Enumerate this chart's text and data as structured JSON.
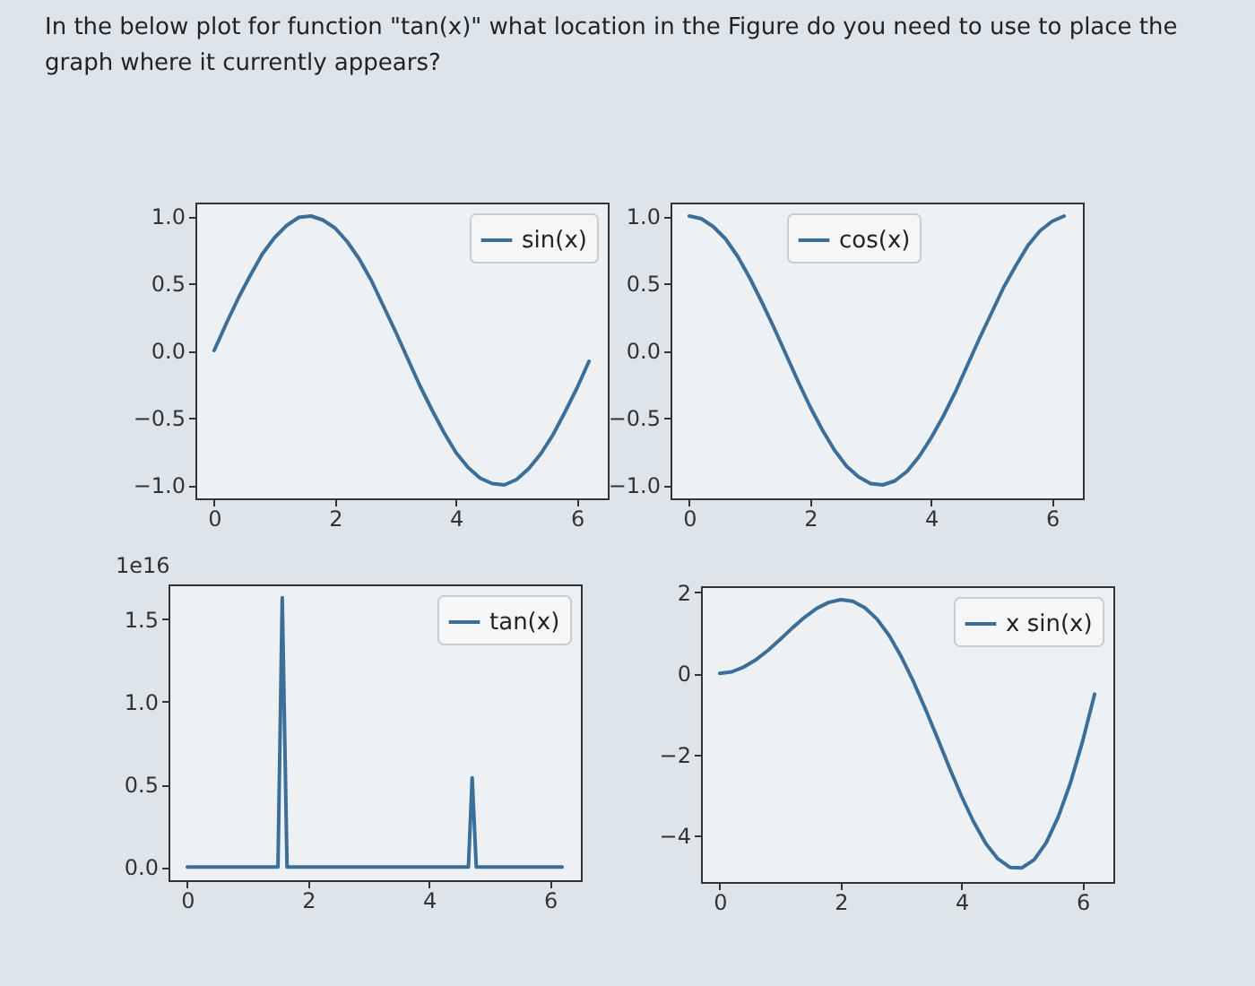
{
  "chart_data": [
    {
      "type": "line",
      "title": "In the below plot for function \"tan(x)\" what location in the Figure do you need to use to place the graph where it currently appears?",
      "x": [
        0,
        0.2,
        0.4,
        0.6,
        0.8,
        1.0,
        1.2,
        1.4,
        1.6,
        1.8,
        2.0,
        2.2,
        2.4,
        2.6,
        2.8,
        3.0,
        3.2,
        3.4,
        3.6,
        3.8,
        4.0,
        4.2,
        4.4,
        4.6,
        4.8,
        5.0,
        5.2,
        5.4,
        5.6,
        5.8,
        6.0,
        6.2
      ],
      "series": [
        {
          "name": "sin(x)",
          "color": "#3b6e99",
          "values": [
            0,
            0.2,
            0.39,
            0.56,
            0.72,
            0.84,
            0.93,
            0.99,
            1.0,
            0.97,
            0.91,
            0.81,
            0.68,
            0.52,
            0.33,
            0.14,
            -0.06,
            -0.26,
            -0.44,
            -0.61,
            -0.76,
            -0.87,
            -0.95,
            -0.99,
            -1.0,
            -0.96,
            -0.88,
            -0.77,
            -0.63,
            -0.46,
            -0.28,
            -0.08
          ]
        }
      ],
      "xlim": [
        -0.31,
        6.51
      ],
      "xticks": [
        0,
        2,
        4,
        6
      ],
      "ylim": [
        -1.1,
        1.1
      ],
      "yticks": [
        {
          "value": -1,
          "label": "−1.0"
        },
        {
          "value": -0.5,
          "label": "−0.5"
        },
        {
          "value": 0,
          "label": "0.0"
        },
        {
          "value": 0.5,
          "label": "0.5"
        },
        {
          "value": 1,
          "label": "1.0"
        }
      ],
      "legend": "top right"
    },
    {
      "type": "line",
      "x": [
        0,
        0.2,
        0.4,
        0.6,
        0.8,
        1.0,
        1.2,
        1.4,
        1.6,
        1.8,
        2.0,
        2.2,
        2.4,
        2.6,
        2.8,
        3.0,
        3.2,
        3.4,
        3.6,
        3.8,
        4.0,
        4.2,
        4.4,
        4.6,
        4.8,
        5.0,
        5.2,
        5.4,
        5.6,
        5.8,
        6.0,
        6.2
      ],
      "series": [
        {
          "name": "cos(x)",
          "color": "#3b6e99",
          "values": [
            1.0,
            0.98,
            0.92,
            0.83,
            0.7,
            0.54,
            0.36,
            0.17,
            -0.03,
            -0.23,
            -0.42,
            -0.59,
            -0.74,
            -0.86,
            -0.94,
            -0.99,
            -1.0,
            -0.97,
            -0.9,
            -0.79,
            -0.65,
            -0.49,
            -0.31,
            -0.11,
            0.09,
            0.28,
            0.47,
            0.63,
            0.78,
            0.89,
            0.96,
            1.0
          ]
        }
      ],
      "xlim": [
        -0.31,
        6.51
      ],
      "xticks": [
        0,
        2,
        4,
        6
      ],
      "ylim": [
        -1.1,
        1.1
      ],
      "yticks": [
        {
          "value": -1,
          "label": "−1.0"
        },
        {
          "value": -0.5,
          "label": "−0.5"
        },
        {
          "value": 0,
          "label": "0.0"
        },
        {
          "value": 0.5,
          "label": "0.5"
        },
        {
          "value": 1,
          "label": "1.0"
        }
      ],
      "legend": "top"
    },
    {
      "type": "line",
      "ylabel": "1e16",
      "x": [
        0,
        1.5,
        1.571,
        1.65,
        4.65,
        4.712,
        4.78,
        6.2
      ],
      "series": [
        {
          "name": "tan(x)",
          "color": "#3b6e99",
          "values": [
            0,
            0,
            1.63,
            0,
            0,
            0.54,
            0,
            0
          ]
        }
      ],
      "xlim": [
        -0.31,
        6.51
      ],
      "xticks": [
        0,
        2,
        4,
        6
      ],
      "ylim": [
        -0.08,
        1.71
      ],
      "yticks": [
        {
          "value": 0,
          "label": "0.0"
        },
        {
          "value": 0.5,
          "label": "0.5"
        },
        {
          "value": 1,
          "label": "1.0"
        },
        {
          "value": 1.5,
          "label": "1.5"
        }
      ],
      "legend": "top right"
    },
    {
      "type": "line",
      "x": [
        0,
        0.2,
        0.4,
        0.6,
        0.8,
        1.0,
        1.2,
        1.4,
        1.6,
        1.8,
        2.0,
        2.2,
        2.4,
        2.6,
        2.8,
        3.0,
        3.2,
        3.4,
        3.6,
        3.8,
        4.0,
        4.2,
        4.4,
        4.6,
        4.8,
        5.0,
        5.2,
        5.4,
        5.6,
        5.8,
        6.0,
        6.2
      ],
      "series": [
        {
          "name": "x sin(x)",
          "color": "#3b6e99",
          "values": [
            0,
            0.04,
            0.16,
            0.34,
            0.57,
            0.84,
            1.12,
            1.38,
            1.6,
            1.75,
            1.82,
            1.78,
            1.62,
            1.34,
            0.94,
            0.42,
            -0.19,
            -0.87,
            -1.59,
            -2.33,
            -3.03,
            -3.66,
            -4.19,
            -4.57,
            -4.78,
            -4.79,
            -4.59,
            -4.17,
            -3.53,
            -2.7,
            -1.68,
            -0.51
          ]
        }
      ],
      "xlim": [
        -0.31,
        6.51
      ],
      "xticks": [
        0,
        2,
        4,
        6
      ],
      "ylim": [
        -5.14,
        2.15
      ],
      "yticks": [
        {
          "value": -4,
          "label": "−4"
        },
        {
          "value": -2,
          "label": "−2"
        },
        0,
        2
      ],
      "legend": "top right"
    }
  ]
}
